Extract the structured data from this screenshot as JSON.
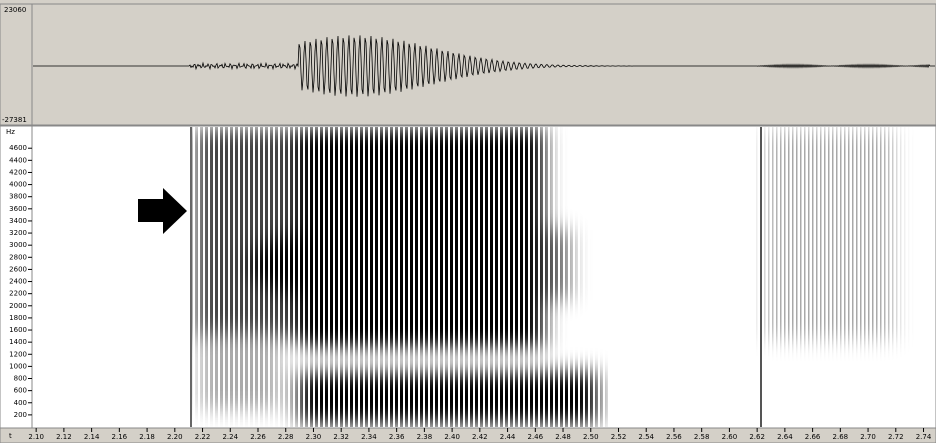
{
  "chart_data": {
    "type": "spectrogram",
    "amplitude_labels": [
      23060,
      -27381
    ],
    "y_label": "Hz",
    "x_label": "t",
    "ylim": [
      0,
      4950
    ],
    "yticks": [
      200,
      400,
      600,
      800,
      1000,
      1200,
      1400,
      1600,
      1800,
      2000,
      2200,
      2400,
      2600,
      2800,
      3000,
      3200,
      3400,
      3600,
      3800,
      4000,
      4200,
      4400,
      4600
    ],
    "xlim": [
      2.097,
      2.749
    ],
    "xticks": [
      {
        "value": 2.1,
        "label": "2.10"
      },
      {
        "value": 2.12,
        "label": "2.12"
      },
      {
        "value": 2.14,
        "label": "2.14"
      },
      {
        "value": 2.16,
        "label": "2.16"
      },
      {
        "value": 2.18,
        "label": "2.18"
      },
      {
        "value": 2.2,
        "label": "2.20"
      },
      {
        "value": 2.22,
        "label": "2.22"
      },
      {
        "value": 2.24,
        "label": "2.24"
      },
      {
        "value": 2.26,
        "label": "2.26"
      },
      {
        "value": 2.28,
        "label": "2.28"
      },
      {
        "value": 2.3,
        "label": "2.30"
      },
      {
        "value": 2.32,
        "label": "2.32"
      },
      {
        "value": 2.34,
        "label": "2.34"
      },
      {
        "value": 2.36,
        "label": "2.36"
      },
      {
        "value": 2.38,
        "label": "2.38"
      },
      {
        "value": 2.4,
        "label": "2.40"
      },
      {
        "value": 2.42,
        "label": "2.42"
      },
      {
        "value": 2.44,
        "label": "2.44"
      },
      {
        "value": 2.46,
        "label": "2.46"
      },
      {
        "value": 2.48,
        "label": "2.48"
      },
      {
        "value": 2.5,
        "label": "2.50"
      },
      {
        "value": 2.52,
        "label": "2.52"
      },
      {
        "value": 2.54,
        "label": "2.54"
      },
      {
        "value": 2.56,
        "label": "2.56"
      },
      {
        "value": 2.58,
        "label": "2.58"
      },
      {
        "value": 2.6,
        "label": "2.60"
      },
      {
        "value": 2.62,
        "label": "2.62"
      },
      {
        "value": 2.64,
        "label": "2.64"
      },
      {
        "value": 2.66,
        "label": "2.66"
      },
      {
        "value": 2.68,
        "label": "2.68"
      },
      {
        "value": 2.7,
        "label": "2.70"
      },
      {
        "value": 2.72,
        "label": "2.72"
      },
      {
        "value": 2.74,
        "label": "2.74"
      }
    ]
  }
}
